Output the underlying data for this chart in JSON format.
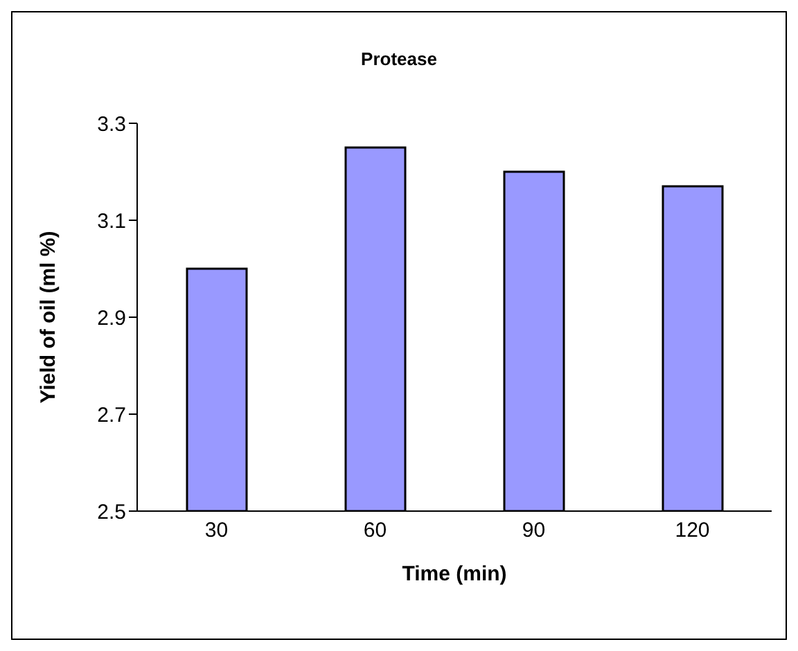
{
  "chart_data": {
    "type": "bar",
    "title": "Protease",
    "xlabel": "Time (min)",
    "ylabel": "Yield of oil (ml %)",
    "categories": [
      "30",
      "60",
      "90",
      "120"
    ],
    "values": [
      3.0,
      3.25,
      3.2,
      3.17
    ],
    "color": "#9999ff",
    "ylim": [
      2.5,
      3.3
    ],
    "yticks": [
      2.5,
      2.7,
      2.9,
      3.1,
      3.3
    ],
    "grid": false,
    "legend": false
  }
}
